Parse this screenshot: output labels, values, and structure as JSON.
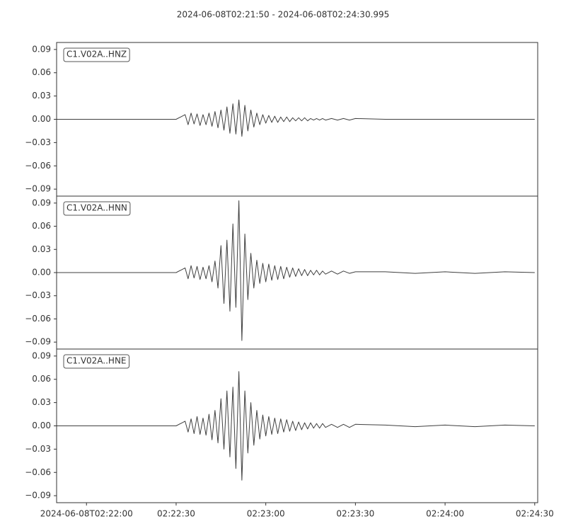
{
  "title": "2024-06-08T02:21:50  -  2024-06-08T02:24:30.995",
  "chart_data": [
    {
      "type": "line",
      "xlim": [
        "2024-06-08T02:21:50",
        "2024-06-08T02:24:30.995"
      ],
      "ylim": [
        -0.099,
        0.099
      ],
      "yticks": [
        {
          "value": -0.09,
          "label": "−0.09"
        },
        {
          "value": -0.06,
          "label": "−0.06"
        },
        {
          "value": -0.03,
          "label": "−0.03"
        },
        {
          "value": 0,
          "label": "0.00"
        },
        0.03,
        0.06,
        0.09
      ],
      "x": [
        "2024-06-08T02:21:50",
        "2024-06-08T02:22:00",
        "2024-06-08T02:22:10",
        "2024-06-08T02:22:20",
        "2024-06-08T02:22:30",
        "2024-06-08T02:22:33",
        "2024-06-08T02:22:34",
        "2024-06-08T02:22:35",
        "2024-06-08T02:22:36",
        "2024-06-08T02:22:37",
        "2024-06-08T02:22:38",
        "2024-06-08T02:22:39",
        "2024-06-08T02:22:40",
        "2024-06-08T02:22:41",
        "2024-06-08T02:22:42",
        "2024-06-08T02:22:43",
        "2024-06-08T02:22:44",
        "2024-06-08T02:22:45",
        "2024-06-08T02:22:46",
        "2024-06-08T02:22:47",
        "2024-06-08T02:22:48",
        "2024-06-08T02:22:49",
        "2024-06-08T02:22:50",
        "2024-06-08T02:22:51",
        "2024-06-08T02:22:52",
        "2024-06-08T02:22:53",
        "2024-06-08T02:22:54",
        "2024-06-08T02:22:55",
        "2024-06-08T02:22:56",
        "2024-06-08T02:22:57",
        "2024-06-08T02:22:58",
        "2024-06-08T02:22:59",
        "2024-06-08T02:23:00",
        "2024-06-08T02:23:01",
        "2024-06-08T02:23:02",
        "2024-06-08T02:23:03",
        "2024-06-08T02:23:04",
        "2024-06-08T02:23:05",
        "2024-06-08T02:23:06",
        "2024-06-08T02:23:07",
        "2024-06-08T02:23:08",
        "2024-06-08T02:23:09",
        "2024-06-08T02:23:10",
        "2024-06-08T02:23:11",
        "2024-06-08T02:23:12",
        "2024-06-08T02:23:13",
        "2024-06-08T02:23:14",
        "2024-06-08T02:23:15",
        "2024-06-08T02:23:16",
        "2024-06-08T02:23:17",
        "2024-06-08T02:23:18",
        "2024-06-08T02:23:19",
        "2024-06-08T02:23:20",
        "2024-06-08T02:23:22",
        "2024-06-08T02:23:24",
        "2024-06-08T02:23:26",
        "2024-06-08T02:23:28",
        "2024-06-08T02:23:30",
        "2024-06-08T02:23:40",
        "2024-06-08T02:23:50",
        "2024-06-08T02:24:00",
        "2024-06-08T02:24:10",
        "2024-06-08T02:24:20",
        "2024-06-08T02:24:30"
      ],
      "series": [
        {
          "name": "C1.V02A..HNZ",
          "color": "#3f3f3f",
          "values": [
            0,
            0,
            0,
            0,
            0,
            0.006,
            -0.007,
            0.008,
            -0.006,
            0.007,
            -0.008,
            0.006,
            -0.007,
            0.008,
            -0.009,
            0.01,
            -0.011,
            0.012,
            -0.014,
            0.016,
            -0.018,
            0.02,
            -0.019,
            0.025,
            -0.022,
            0.018,
            -0.015,
            0.012,
            -0.01,
            0.008,
            -0.007,
            0.006,
            -0.005,
            0.005,
            -0.004,
            0.004,
            -0.004,
            0.003,
            -0.003,
            0.003,
            -0.003,
            0.002,
            -0.002,
            0.002,
            -0.002,
            0.002,
            -0.002,
            0.001,
            -0.001,
            0.001,
            -0.001,
            0.001,
            -0.001,
            0.001,
            -0.001,
            0.001,
            -0.001,
            0.001,
            0,
            0,
            0,
            0,
            0,
            0
          ]
        }
      ]
    },
    {
      "type": "line",
      "xlim": [
        "2024-06-08T02:21:50",
        "2024-06-08T02:24:30.995"
      ],
      "ylim": [
        -0.099,
        0.099
      ],
      "yticks": [
        {
          "value": -0.09,
          "label": "−0.09"
        },
        {
          "value": -0.06,
          "label": "−0.06"
        },
        {
          "value": -0.03,
          "label": "−0.03"
        },
        {
          "value": 0,
          "label": "0.00"
        },
        0.03,
        0.06,
        0.09
      ],
      "x": [
        "2024-06-08T02:21:50",
        "2024-06-08T02:22:00",
        "2024-06-08T02:22:10",
        "2024-06-08T02:22:20",
        "2024-06-08T02:22:30",
        "2024-06-08T02:22:33",
        "2024-06-08T02:22:34",
        "2024-06-08T02:22:35",
        "2024-06-08T02:22:36",
        "2024-06-08T02:22:37",
        "2024-06-08T02:22:38",
        "2024-06-08T02:22:39",
        "2024-06-08T02:22:40",
        "2024-06-08T02:22:41",
        "2024-06-08T02:22:42",
        "2024-06-08T02:22:43",
        "2024-06-08T02:22:44",
        "2024-06-08T02:22:45",
        "2024-06-08T02:22:46",
        "2024-06-08T02:22:47",
        "2024-06-08T02:22:48",
        "2024-06-08T02:22:49",
        "2024-06-08T02:22:50",
        "2024-06-08T02:22:51",
        "2024-06-08T02:22:52",
        "2024-06-08T02:22:53",
        "2024-06-08T02:22:54",
        "2024-06-08T02:22:55",
        "2024-06-08T02:22:56",
        "2024-06-08T02:22:57",
        "2024-06-08T02:22:58",
        "2024-06-08T02:22:59",
        "2024-06-08T02:23:00",
        "2024-06-08T02:23:01",
        "2024-06-08T02:23:02",
        "2024-06-08T02:23:03",
        "2024-06-08T02:23:04",
        "2024-06-08T02:23:05",
        "2024-06-08T02:23:06",
        "2024-06-08T02:23:07",
        "2024-06-08T02:23:08",
        "2024-06-08T02:23:09",
        "2024-06-08T02:23:10",
        "2024-06-08T02:23:11",
        "2024-06-08T02:23:12",
        "2024-06-08T02:23:13",
        "2024-06-08T02:23:14",
        "2024-06-08T02:23:15",
        "2024-06-08T02:23:16",
        "2024-06-08T02:23:17",
        "2024-06-08T02:23:18",
        "2024-06-08T02:23:19",
        "2024-06-08T02:23:20",
        "2024-06-08T02:23:22",
        "2024-06-08T02:23:24",
        "2024-06-08T02:23:26",
        "2024-06-08T02:23:28",
        "2024-06-08T02:23:30",
        "2024-06-08T02:23:40",
        "2024-06-08T02:23:50",
        "2024-06-08T02:24:00",
        "2024-06-08T02:24:10",
        "2024-06-08T02:24:20",
        "2024-06-08T02:24:30"
      ],
      "series": [
        {
          "name": "C1.V02A..HNN",
          "color": "#3f3f3f",
          "values": [
            0,
            0,
            0,
            0,
            0,
            0.006,
            -0.008,
            0.009,
            -0.007,
            0.008,
            -0.009,
            0.007,
            -0.008,
            0.009,
            -0.012,
            0.015,
            -0.02,
            0.035,
            -0.04,
            0.042,
            -0.05,
            0.063,
            -0.045,
            0.093,
            -0.088,
            0.05,
            -0.035,
            0.025,
            -0.02,
            0.016,
            -0.014,
            0.012,
            -0.012,
            0.011,
            -0.01,
            0.009,
            -0.009,
            0.008,
            -0.008,
            0.007,
            -0.006,
            0.006,
            -0.005,
            0.005,
            -0.004,
            0.004,
            -0.004,
            0.003,
            -0.003,
            0.003,
            -0.003,
            0.002,
            -0.002,
            0.002,
            -0.002,
            0.002,
            -0.001,
            0.001,
            0.001,
            -0.001,
            0.001,
            -0.001,
            0.001,
            0
          ]
        }
      ]
    },
    {
      "type": "line",
      "xlim": [
        "2024-06-08T02:21:50",
        "2024-06-08T02:24:30.995"
      ],
      "ylim": [
        -0.099,
        0.099
      ],
      "yticks": [
        {
          "value": -0.09,
          "label": "−0.09"
        },
        {
          "value": -0.06,
          "label": "−0.06"
        },
        {
          "value": -0.03,
          "label": "−0.03"
        },
        {
          "value": 0,
          "label": "0.00"
        },
        0.03,
        0.06,
        0.09
      ],
      "xticks": [
        "2024-06-08T02:22:00",
        {
          "value": "2024-06-08T02:22:30",
          "label": "02:22:30"
        },
        {
          "value": "2024-06-08T02:23:00",
          "label": "02:23:00"
        },
        {
          "value": "2024-06-08T02:23:30",
          "label": "02:23:30"
        },
        {
          "value": "2024-06-08T02:24:00",
          "label": "02:24:00"
        },
        {
          "value": "2024-06-08T02:24:30",
          "label": "02:24:30"
        }
      ],
      "x": [
        "2024-06-08T02:21:50",
        "2024-06-08T02:22:00",
        "2024-06-08T02:22:10",
        "2024-06-08T02:22:20",
        "2024-06-08T02:22:30",
        "2024-06-08T02:22:33",
        "2024-06-08T02:22:34",
        "2024-06-08T02:22:35",
        "2024-06-08T02:22:36",
        "2024-06-08T02:22:37",
        "2024-06-08T02:22:38",
        "2024-06-08T02:22:39",
        "2024-06-08T02:22:40",
        "2024-06-08T02:22:41",
        "2024-06-08T02:22:42",
        "2024-06-08T02:22:43",
        "2024-06-08T02:22:44",
        "2024-06-08T02:22:45",
        "2024-06-08T02:22:46",
        "2024-06-08T02:22:47",
        "2024-06-08T02:22:48",
        "2024-06-08T02:22:49",
        "2024-06-08T02:22:50",
        "2024-06-08T02:22:51",
        "2024-06-08T02:22:52",
        "2024-06-08T02:22:53",
        "2024-06-08T02:22:54",
        "2024-06-08T02:22:55",
        "2024-06-08T02:22:56",
        "2024-06-08T02:22:57",
        "2024-06-08T02:22:58",
        "2024-06-08T02:22:59",
        "2024-06-08T02:23:00",
        "2024-06-08T02:23:01",
        "2024-06-08T02:23:02",
        "2024-06-08T02:23:03",
        "2024-06-08T02:23:04",
        "2024-06-08T02:23:05",
        "2024-06-08T02:23:06",
        "2024-06-08T02:23:07",
        "2024-06-08T02:23:08",
        "2024-06-08T02:23:09",
        "2024-06-08T02:23:10",
        "2024-06-08T02:23:11",
        "2024-06-08T02:23:12",
        "2024-06-08T02:23:13",
        "2024-06-08T02:23:14",
        "2024-06-08T02:23:15",
        "2024-06-08T02:23:16",
        "2024-06-08T02:23:17",
        "2024-06-08T02:23:18",
        "2024-06-08T02:23:19",
        "2024-06-08T02:23:20",
        "2024-06-08T02:23:22",
        "2024-06-08T02:23:24",
        "2024-06-08T02:23:26",
        "2024-06-08T02:23:28",
        "2024-06-08T02:23:30",
        "2024-06-08T02:23:40",
        "2024-06-08T02:23:50",
        "2024-06-08T02:24:00",
        "2024-06-08T02:24:10",
        "2024-06-08T02:24:20",
        "2024-06-08T02:24:30"
      ],
      "series": [
        {
          "name": "C1.V02A..HNE",
          "color": "#3f3f3f",
          "values": [
            0,
            0,
            0,
            0,
            0,
            0.006,
            -0.008,
            0.009,
            -0.01,
            0.012,
            -0.011,
            0.01,
            -0.012,
            0.015,
            -0.018,
            0.02,
            -0.022,
            0.035,
            -0.03,
            0.045,
            -0.04,
            0.05,
            -0.055,
            0.07,
            -0.07,
            0.045,
            -0.035,
            0.03,
            -0.025,
            0.02,
            -0.017,
            0.014,
            -0.013,
            0.012,
            -0.011,
            0.01,
            -0.01,
            0.009,
            -0.008,
            0.008,
            -0.007,
            0.006,
            -0.006,
            0.005,
            -0.005,
            0.004,
            -0.004,
            0.004,
            -0.003,
            0.003,
            -0.003,
            0.003,
            -0.002,
            0.002,
            -0.002,
            0.002,
            -0.002,
            0.002,
            0.001,
            -0.001,
            0.001,
            -0.001,
            0.001,
            0
          ]
        }
      ]
    }
  ]
}
